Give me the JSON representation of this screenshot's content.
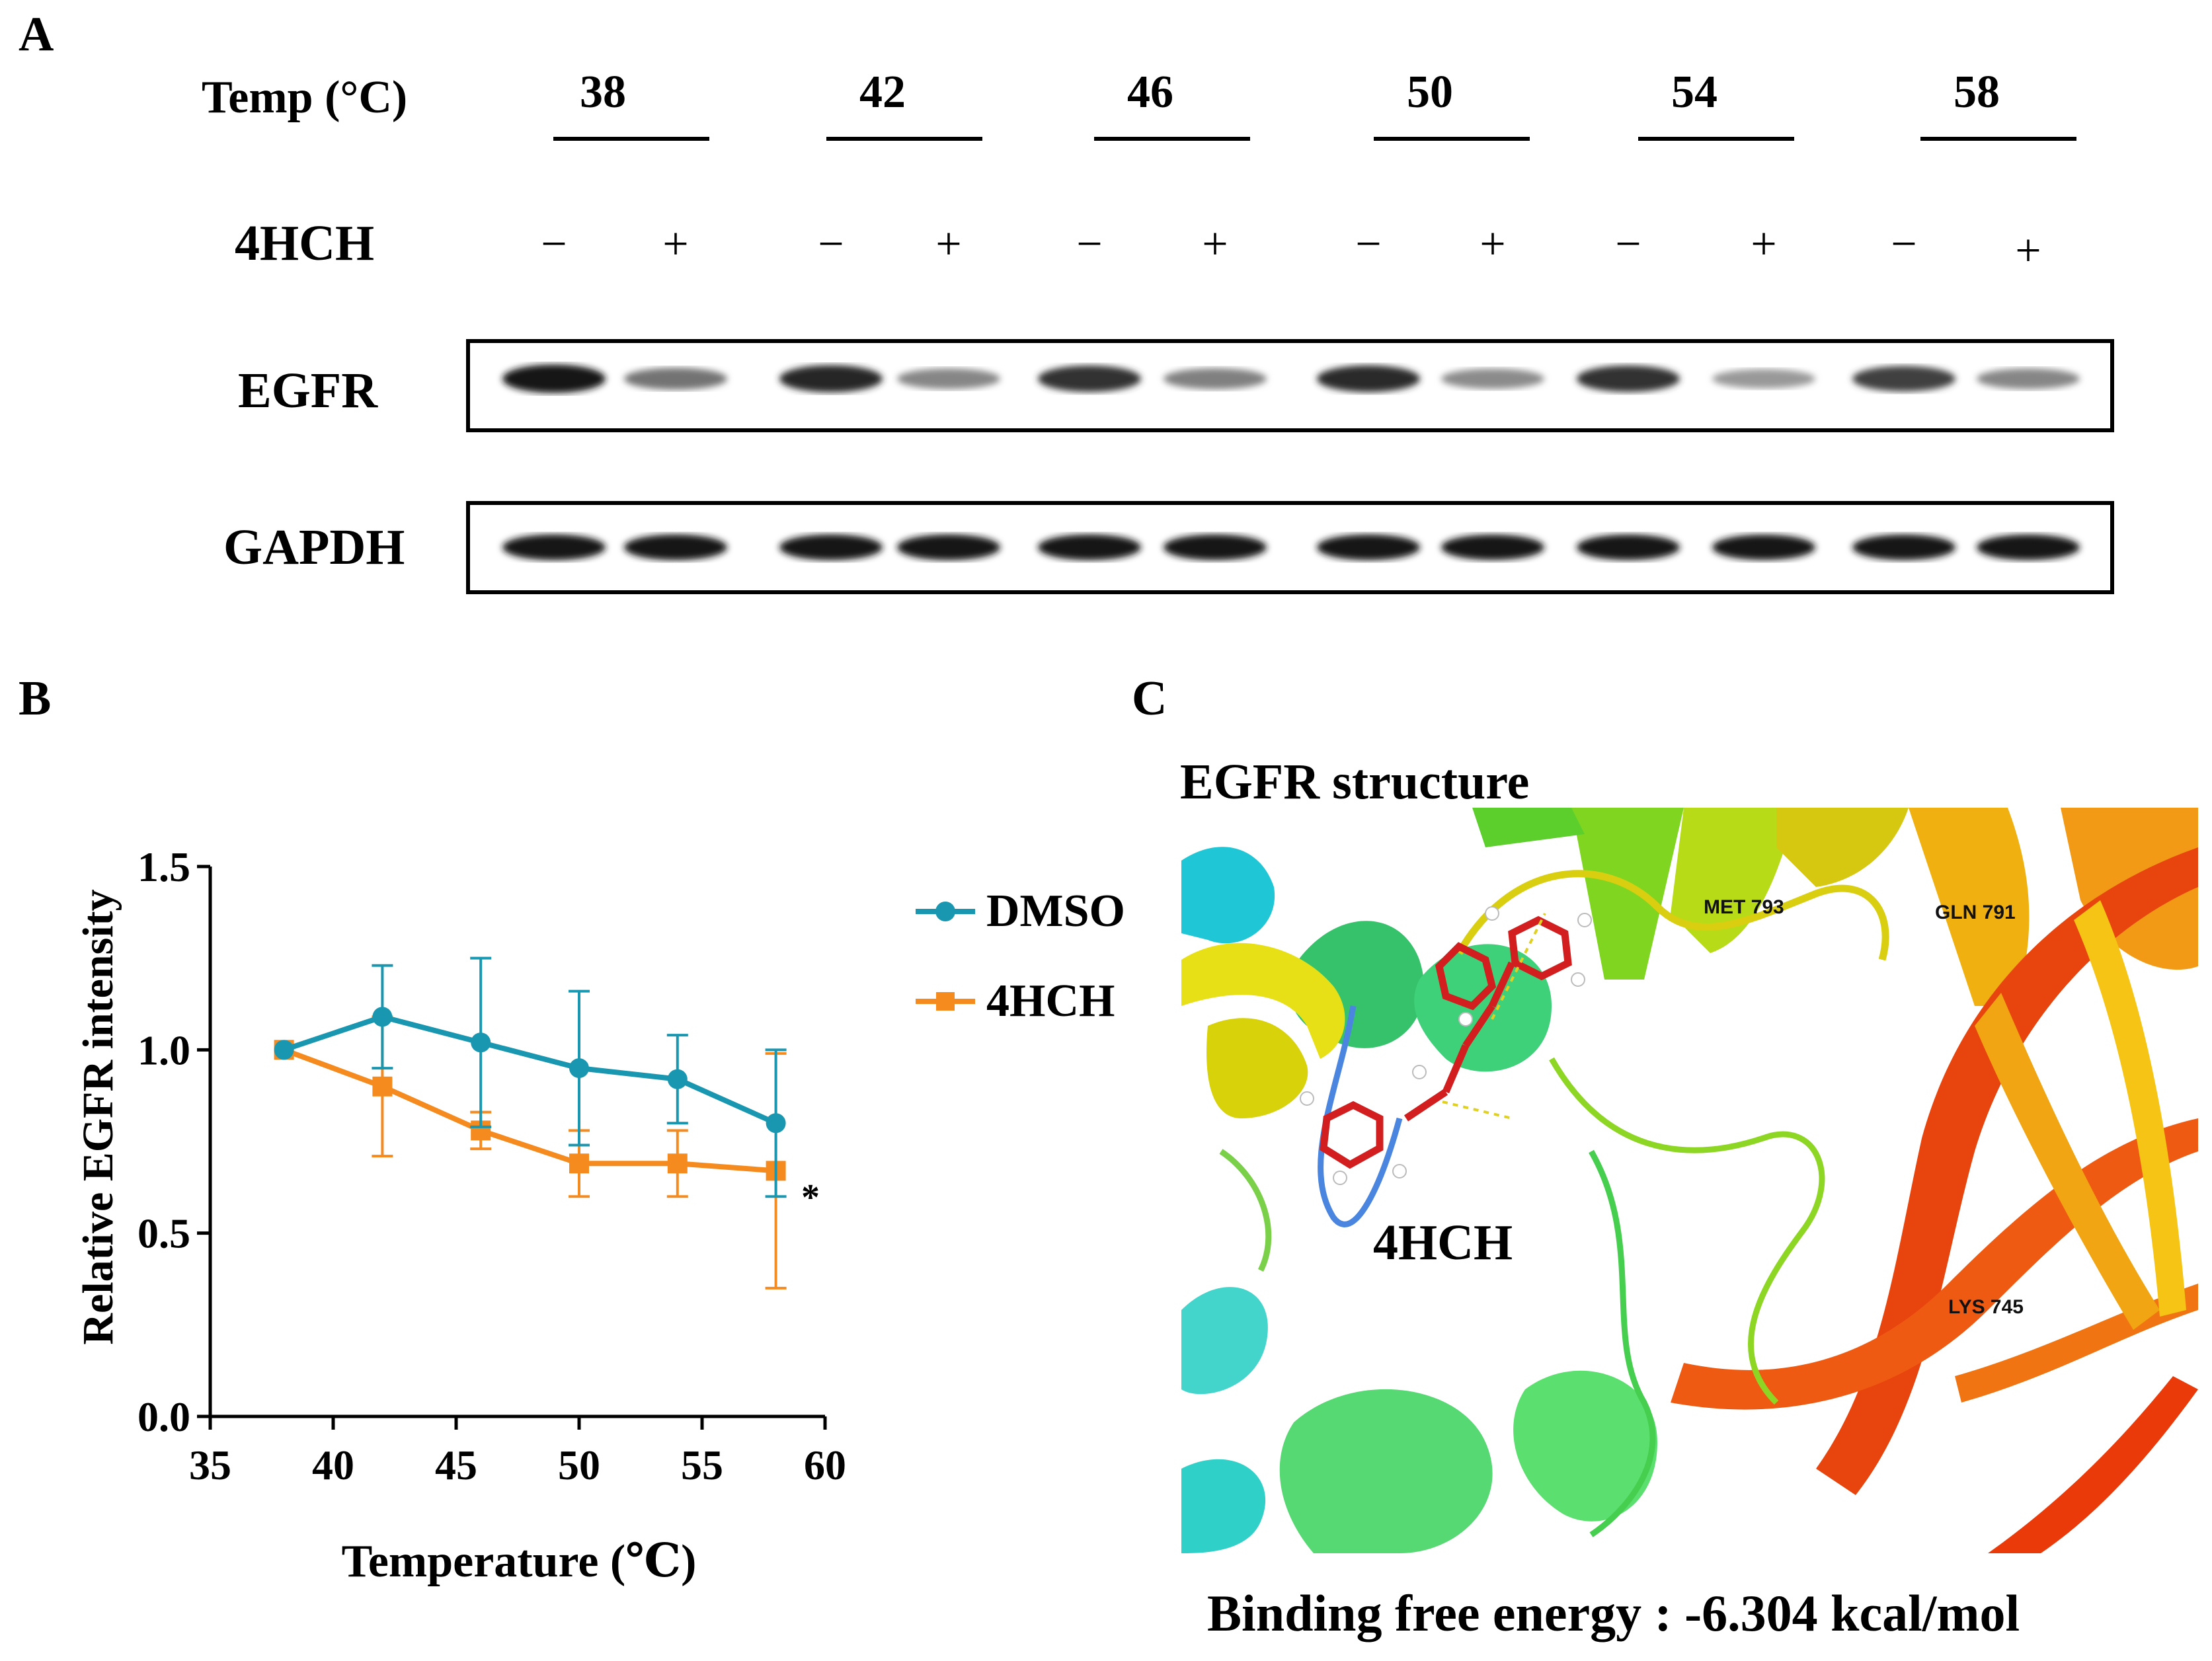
{
  "panels": {
    "a": "A",
    "b": "B",
    "c": "C"
  },
  "panel_a": {
    "temp_label": "Temp (°C)",
    "temps": [
      "38",
      "42",
      "46",
      "50",
      "54",
      "58"
    ],
    "treatment_label": "4HCH",
    "signs": [
      "−",
      "+",
      "−",
      "+",
      "−",
      "+",
      "−",
      "+",
      "−",
      "+",
      "−",
      "+"
    ],
    "blots": [
      {
        "label": "EGFR",
        "band_intensity": [
          0.95,
          0.45,
          0.85,
          0.35,
          0.8,
          0.38,
          0.82,
          0.32,
          0.8,
          0.25,
          0.72,
          0.35
        ]
      },
      {
        "label": "GAPDH",
        "band_intensity": [
          0.95,
          0.95,
          0.95,
          0.95,
          0.95,
          0.95,
          0.95,
          0.92,
          0.93,
          0.92,
          0.93,
          0.93
        ]
      }
    ]
  },
  "chart_data": {
    "type": "line",
    "xlabel": "Temperature (℃)",
    "ylabel": "Relative EGFR intensity",
    "xlim": [
      35,
      60
    ],
    "ylim": [
      0,
      1.5
    ],
    "xticks": [
      "35",
      "40",
      "45",
      "50",
      "55",
      "60"
    ],
    "yticks": [
      "0.0",
      "0.5",
      "1.0",
      "1.5"
    ],
    "x": [
      38,
      42,
      46,
      50,
      54,
      58
    ],
    "series": [
      {
        "name": "DMSO",
        "color": "#1a97b0",
        "marker": "circle",
        "values": [
          1.0,
          1.09,
          1.02,
          0.95,
          0.92,
          0.8
        ],
        "error": [
          0.0,
          0.14,
          0.23,
          0.21,
          0.12,
          0.2
        ]
      },
      {
        "name": "4HCH",
        "color": "#f58a1f",
        "marker": "square",
        "values": [
          1.0,
          0.9,
          0.78,
          0.69,
          0.69,
          0.67
        ],
        "error": [
          0.0,
          0.19,
          0.05,
          0.09,
          0.09,
          0.32
        ]
      }
    ],
    "annotation": "*",
    "legend_position": "right"
  },
  "panel_c": {
    "title": "EGFR structure",
    "ligand_label": "4HCH",
    "residues": [
      "MET  793",
      "GLN  791",
      "LYS  745"
    ],
    "binding_energy": "Binding free energy : -6.304 kcal/mol"
  }
}
